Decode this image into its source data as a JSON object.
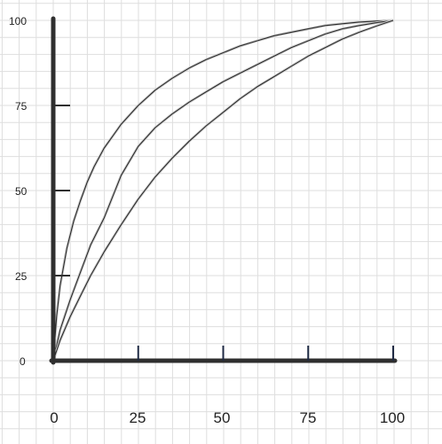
{
  "chart_data": {
    "type": "line",
    "title": "",
    "xlabel": "",
    "ylabel": "",
    "xlim": [
      0,
      100
    ],
    "ylim": [
      0,
      100
    ],
    "x_ticks": [
      "0",
      "25",
      "50",
      "75",
      "100"
    ],
    "y_ticks": [
      "100",
      "75",
      "50",
      "25",
      "0"
    ],
    "grid": true,
    "legend": "none",
    "series": [
      {
        "x": [
          0,
          1,
          2,
          4,
          6,
          8,
          10,
          12,
          15,
          20,
          25,
          30,
          35,
          40,
          45,
          50,
          55,
          60,
          65,
          70,
          75,
          80,
          85,
          90,
          95,
          100
        ],
        "y": [
          0,
          13,
          22,
          33,
          41,
          47,
          52.5,
          57,
          62.5,
          69.5,
          75,
          79.5,
          83,
          86,
          88.5,
          90.5,
          92.5,
          94,
          95.5,
          96.5,
          97.5,
          98.5,
          99,
          99.5,
          99.8,
          100
        ]
      },
      {
        "x": [
          0,
          2,
          5,
          8,
          11,
          15,
          20,
          25,
          30,
          35,
          40,
          45,
          50,
          55,
          60,
          65,
          70,
          75,
          80,
          85,
          90,
          95,
          100
        ],
        "y": [
          0,
          9,
          18,
          26,
          34,
          42,
          54.5,
          63,
          68.5,
          72.5,
          76,
          79,
          82,
          84.5,
          87,
          89.5,
          92,
          94,
          96,
          97.5,
          98.5,
          99.3,
          100
        ]
      },
      {
        "x": [
          0,
          2,
          5,
          8,
          11,
          15,
          20,
          25,
          30,
          35,
          40,
          45,
          50,
          55,
          60,
          65,
          70,
          75,
          80,
          85,
          90,
          95,
          100
        ],
        "y": [
          0,
          6,
          13,
          19,
          25,
          32,
          40,
          47.5,
          54,
          59.5,
          64.5,
          69,
          73,
          77,
          80.5,
          83.5,
          86.5,
          89.5,
          92,
          94.5,
          96.5,
          98.3,
          100
        ]
      }
    ],
    "colors": {
      "axis": "#2f2f2f",
      "grid": "#dedede",
      "tick_mark": "#1f2a44",
      "line": "#2a2a2a"
    }
  }
}
